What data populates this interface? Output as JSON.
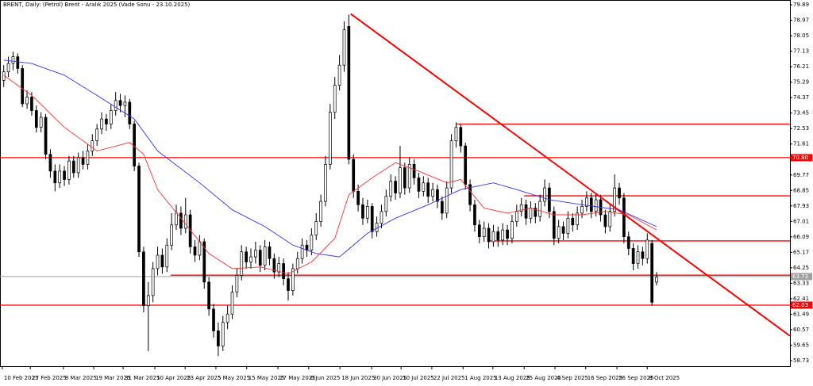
{
  "chart_data": {
    "type": "candlestick",
    "title": "BRENT, Daily: (Petrol) Brent - Aralık 2025 (Vade Sonu - 23.10.2025)",
    "bull_color": "#ffffff",
    "bear_color": "#000000",
    "open": [
      75.4,
      75.9,
      76.4,
      76.8,
      76.1,
      74.0,
      74.4,
      73.6,
      72.6,
      73.2,
      71.0,
      70.0,
      69.3,
      70.0,
      69.5,
      70.6,
      69.9,
      70.8,
      70.4,
      71.2,
      71.8,
      72.5,
      73.1,
      72.8,
      73.6,
      74.2,
      73.9,
      74.1,
      72.8,
      70.3,
      65.2,
      62.0,
      62.6,
      64.2,
      65.0,
      64.3,
      65.6,
      66.8,
      67.5,
      66.6,
      67.4,
      65.5,
      65.0,
      65.8,
      63.4,
      61.8,
      60.5,
      59.6,
      61.0,
      61.5,
      62.8,
      63.8,
      65.2,
      64.6,
      64.9,
      65.3,
      64.4,
      65.5,
      64.8,
      64.0,
      64.5,
      63.6,
      62.9,
      64.2,
      64.8,
      65.6,
      65.3,
      66.2,
      67.0,
      68.2,
      70.4,
      73.5,
      75.1,
      76.3,
      78.6,
      70.7,
      68.8,
      68.0,
      67.2,
      67.9,
      66.4,
      66.9,
      67.6,
      68.5,
      69.4,
      68.7,
      70.2,
      69.0,
      70.4,
      69.6,
      68.8,
      69.3,
      68.5,
      68.9,
      68.2,
      67.5,
      69.0,
      71.8,
      72.6,
      71.5,
      69.2,
      68.0,
      66.8,
      66.1,
      66.6,
      65.8,
      66.4,
      65.9,
      66.5,
      66.0,
      67.0,
      67.6,
      68.0,
      67.2,
      67.8,
      67.3,
      68.2,
      69.0,
      67.6,
      66.0,
      66.7,
      66.3,
      67.2,
      66.8,
      67.5,
      67.9,
      68.4,
      67.6,
      68.3,
      67.4,
      66.7,
      67.6,
      69.0,
      68.4,
      66.1,
      65.4,
      64.5,
      65.2,
      64.8,
      65.7,
      63.4
    ],
    "high": [
      76.3,
      76.8,
      77.1,
      77.0,
      76.3,
      74.8,
      74.7,
      73.9,
      73.5,
      73.4,
      71.3,
      70.4,
      70.4,
      70.3,
      70.9,
      70.9,
      71.1,
      71.2,
      71.6,
      72.2,
      72.8,
      73.5,
      73.4,
      74.0,
      74.7,
      74.6,
      74.5,
      74.3,
      73.0,
      70.5,
      65.5,
      63.4,
      64.6,
      65.5,
      65.4,
      66.0,
      67.5,
      68.0,
      67.9,
      68.4,
      67.7,
      65.9,
      66.2,
      66.0,
      63.7,
      62.1,
      61.0,
      61.4,
      62.0,
      63.2,
      64.2,
      65.6,
      65.5,
      65.4,
      65.8,
      65.6,
      65.9,
      65.8,
      65.1,
      64.9,
      64.8,
      64.0,
      64.5,
      65.2,
      66.0,
      65.9,
      66.6,
      67.5,
      68.6,
      70.9,
      74.0,
      75.6,
      76.9,
      78.9,
      79.3,
      71.0,
      69.2,
      68.4,
      68.3,
      68.1,
      67.3,
      68.0,
      68.9,
      69.8,
      69.7,
      71.5,
      70.5,
      70.8,
      70.7,
      69.9,
      69.7,
      69.6,
      69.3,
      69.2,
      68.5,
      69.4,
      72.2,
      72.9,
      72.8,
      71.7,
      69.5,
      68.3,
      67.1,
      67.0,
      66.9,
      66.8,
      66.7,
      66.9,
      66.8,
      67.4,
      68.0,
      68.4,
      68.3,
      68.2,
      68.1,
      68.6,
      69.5,
      69.3,
      67.9,
      67.1,
      67.0,
      67.6,
      67.5,
      67.9,
      68.3,
      68.8,
      68.7,
      68.7,
      68.6,
      67.7,
      68.0,
      69.8,
      69.3,
      68.7,
      66.4,
      65.7,
      65.6,
      65.5,
      66.3,
      65.9,
      64.0
    ],
    "low": [
      75.0,
      75.6,
      76.0,
      75.8,
      73.8,
      73.7,
      73.3,
      72.3,
      72.3,
      70.7,
      69.6,
      68.8,
      69.0,
      69.1,
      69.2,
      69.6,
      69.6,
      70.1,
      70.1,
      70.9,
      71.5,
      72.2,
      72.4,
      72.5,
      73.3,
      73.5,
      73.2,
      72.5,
      70.0,
      64.9,
      61.6,
      59.3,
      62.2,
      63.8,
      63.9,
      64.0,
      65.3,
      66.5,
      66.2,
      66.3,
      65.1,
      64.6,
      64.7,
      63.0,
      61.4,
      60.1,
      59.0,
      59.3,
      60.6,
      61.2,
      62.5,
      63.5,
      64.2,
      64.2,
      64.5,
      64.0,
      64.1,
      64.4,
      63.6,
      63.7,
      63.2,
      62.3,
      62.6,
      63.9,
      64.5,
      64.9,
      65.0,
      65.9,
      66.7,
      67.9,
      70.1,
      73.1,
      74.8,
      75.9,
      70.4,
      68.4,
      67.6,
      66.8,
      66.9,
      66.0,
      66.1,
      66.6,
      67.3,
      68.2,
      68.3,
      68.4,
      68.6,
      68.7,
      69.2,
      68.4,
      68.5,
      68.1,
      68.2,
      67.8,
      67.1,
      67.2,
      68.7,
      71.4,
      71.1,
      68.9,
      67.6,
      66.4,
      65.7,
      65.8,
      65.4,
      65.5,
      65.5,
      65.6,
      65.6,
      65.7,
      66.7,
      67.3,
      66.8,
      66.9,
      66.9,
      67.0,
      67.9,
      67.2,
      65.6,
      65.7,
      65.9,
      66.0,
      66.4,
      66.5,
      67.2,
      67.6,
      67.2,
      67.3,
      67.0,
      66.3,
      66.4,
      67.3,
      68.0,
      65.7,
      65.0,
      64.1,
      64.2,
      64.4,
      64.5,
      62.0,
      63.2
    ],
    "close": [
      75.9,
      76.4,
      76.8,
      76.1,
      74.0,
      74.4,
      73.6,
      72.6,
      73.2,
      71.0,
      70.0,
      69.3,
      70.0,
      69.5,
      70.6,
      69.9,
      70.8,
      70.4,
      71.2,
      71.8,
      72.5,
      73.1,
      72.8,
      73.6,
      74.2,
      73.9,
      74.1,
      72.8,
      70.3,
      65.2,
      62.0,
      62.6,
      64.2,
      65.0,
      64.3,
      65.6,
      66.8,
      67.5,
      66.6,
      67.4,
      65.5,
      65.0,
      65.8,
      63.4,
      61.8,
      60.5,
      59.6,
      61.0,
      61.5,
      62.8,
      63.8,
      65.2,
      64.6,
      64.9,
      65.3,
      64.4,
      65.5,
      64.8,
      64.0,
      64.5,
      63.6,
      62.9,
      64.2,
      64.8,
      65.6,
      65.3,
      66.2,
      67.0,
      68.2,
      70.4,
      73.5,
      75.1,
      76.3,
      78.4,
      70.7,
      68.8,
      68.0,
      67.2,
      67.9,
      66.4,
      66.9,
      67.6,
      68.5,
      69.4,
      68.7,
      70.2,
      69.0,
      70.4,
      69.6,
      68.8,
      69.3,
      68.5,
      68.9,
      68.2,
      67.5,
      69.0,
      71.8,
      72.6,
      71.5,
      69.2,
      68.0,
      66.8,
      66.1,
      66.6,
      65.8,
      66.4,
      65.9,
      66.5,
      66.0,
      67.0,
      67.6,
      68.0,
      67.2,
      67.8,
      67.3,
      68.2,
      69.0,
      67.6,
      66.0,
      66.7,
      66.3,
      67.2,
      66.8,
      67.5,
      67.9,
      68.4,
      67.6,
      68.3,
      67.4,
      66.7,
      67.6,
      69.0,
      68.4,
      66.1,
      65.4,
      64.5,
      65.2,
      64.8,
      65.9,
      62.2,
      63.7
    ],
    "lines": [
      {
        "color": "#3333ff",
        "x": [
          0,
          6,
          13,
          20,
          28,
          33,
          42,
          49,
          56,
          62,
          67,
          72,
          78,
          84,
          91,
          98,
          105,
          110,
          117,
          124,
          132,
          140
        ],
        "values": [
          76.6,
          76.4,
          75.7,
          74.5,
          73.1,
          71.2,
          69.3,
          67.7,
          66.7,
          65.6,
          65.1,
          64.9,
          66.3,
          67.2,
          68.0,
          68.9,
          69.3,
          68.9,
          68.3,
          68.0,
          67.7,
          66.7
        ]
      },
      {
        "color": "#ff3333",
        "x": [
          0,
          6,
          13,
          20,
          27,
          30,
          33,
          38,
          44,
          49,
          55,
          61,
          66,
          71,
          74,
          79,
          84,
          89,
          95,
          98,
          103,
          108,
          113,
          118,
          124,
          129,
          134,
          140
        ],
        "values": [
          75.7,
          74.5,
          72.6,
          71.2,
          71.7,
          71.0,
          68.9,
          67.2,
          65.1,
          64.2,
          64.3,
          63.9,
          64.6,
          66.0,
          68.6,
          69.6,
          70.5,
          70.0,
          69.3,
          69.5,
          67.8,
          67.5,
          67.8,
          67.4,
          67.4,
          67.6,
          67.4,
          66.5
        ]
      }
    ],
    "hlines": [
      {
        "value": 70.8,
        "label": "70.80",
        "color": "#ff0000"
      },
      {
        "value": 62.03,
        "label": "62.03",
        "color": "#ff0000"
      },
      {
        "value": 72.8,
        "from": 97.1,
        "color": "#ff0000"
      },
      {
        "value": 68.53,
        "from": 111.6,
        "color": "#ff0000"
      },
      {
        "value": 65.85,
        "from": 103.9,
        "color": "#ff0000"
      },
      {
        "value": 63.81,
        "from": 35.8,
        "color": "#ff0000"
      }
    ],
    "price_line": {
      "value": 63.73,
      "label": "63.73",
      "color": "#a0a0a0"
    },
    "trendline": {
      "x": [
        74.4,
        168.6
      ],
      "values": [
        79.35,
        60.2
      ],
      "color": "#ff0000"
    },
    "xlim": [
      -0.8,
      168.6
    ],
    "xticks": [
      {
        "value": -0.3,
        "label": "10 Feb 2025"
      },
      {
        "value": 5.7,
        "label": "27 Feb 2025"
      },
      {
        "value": 12.8,
        "label": "8 Mar 2025"
      },
      {
        "value": 19.3,
        "label": "19 Mar 2025"
      },
      {
        "value": 25.6,
        "label": "31 Mar 2025"
      },
      {
        "value": 32.4,
        "label": "10 Apr 2025"
      },
      {
        "value": 38.9,
        "label": "23 Apr 2025"
      },
      {
        "value": 45.5,
        "label": "5 May 2025"
      },
      {
        "value": 52.1,
        "label": "15 May 2025"
      },
      {
        "value": 58.8,
        "label": "27 May 2025"
      },
      {
        "value": 65.4,
        "label": "6 Jun 2025"
      },
      {
        "value": 72.1,
        "label": "18 Jun 2025"
      },
      {
        "value": 78.9,
        "label": "30 Jun 2025"
      },
      {
        "value": 85.2,
        "label": "10 Jul 2025"
      },
      {
        "value": 91.8,
        "label": "22 Jul 2025"
      },
      {
        "value": 98.5,
        "label": "1 Aug 2025"
      },
      {
        "value": 104.9,
        "label": "13 Aug 2025"
      },
      {
        "value": 111.6,
        "label": "25 Aug 2025"
      },
      {
        "value": 118.2,
        "label": "4 Sep 2025"
      },
      {
        "value": 124.8,
        "label": "16 Sep 2025"
      },
      {
        "value": 131.5,
        "label": "26 Sep 2025"
      },
      {
        "value": 138.0,
        "label": "8 Oct 2025"
      }
    ],
    "ylim": [
      58.4,
      80.08
    ],
    "yticks": [
      79.89,
      78.97,
      78.05,
      77.13,
      76.21,
      75.29,
      74.37,
      73.45,
      72.53,
      71.61,
      69.77,
      68.85,
      67.93,
      67.01,
      66.09,
      65.17,
      64.25,
      63.33,
      62.41,
      61.49,
      60.57,
      59.65,
      58.73
    ]
  }
}
